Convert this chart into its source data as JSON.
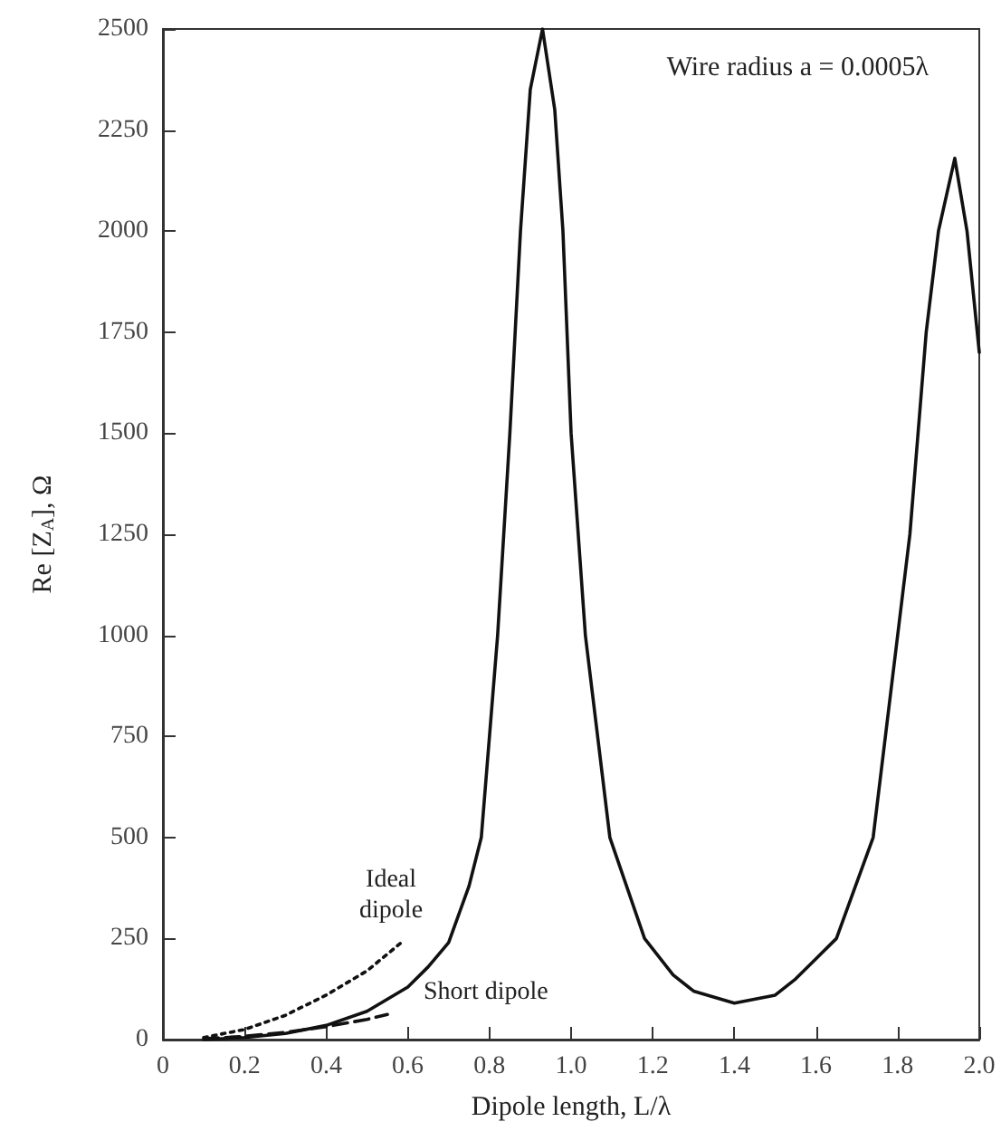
{
  "chart_data": {
    "type": "line",
    "xlabel": "Dipole length, L/λ",
    "ylabel": "Re [Z$_{A}$], Ω",
    "annotations": [
      "Wire radius a = 0.0005λ"
    ],
    "xlim": [
      0,
      2
    ],
    "xticks": [
      0,
      0.2,
      0.4,
      0.6,
      0.8,
      {
        "value": 1,
        "label": "1.0"
      },
      1.2,
      1.4,
      1.6,
      1.8,
      {
        "value": 2,
        "label": "2.0"
      }
    ],
    "ylim": [
      0,
      2500
    ],
    "yticks": [
      0,
      250,
      500,
      750,
      1000,
      1250,
      1500,
      1750,
      2000,
      2250,
      2500
    ],
    "grid": false,
    "legend": false,
    "marker": "none",
    "series": [
      {
        "color": "#111111",
        "line_style": "solid",
        "x": [
          0.1,
          0.2,
          0.3,
          0.4,
          0.5,
          0.6,
          0.65,
          0.7,
          0.75,
          0.78,
          0.82,
          0.85,
          0.876,
          0.9,
          0.93,
          0.96,
          0.98,
          1.0,
          1.035,
          1.095,
          1.18,
          1.25,
          1.3,
          1.4,
          1.5,
          1.55,
          1.6,
          1.65,
          1.74,
          1.8,
          1.83,
          1.87,
          1.9,
          1.94,
          1.97,
          2.0
        ],
        "values": [
          0,
          5,
          15,
          35,
          70,
          130,
          180,
          240,
          380,
          500,
          1000,
          1500,
          2000,
          2350,
          2500,
          2300,
          2000,
          1500,
          1000,
          500,
          250,
          160,
          120,
          90,
          110,
          150,
          200,
          250,
          500,
          1000,
          1250,
          1750,
          2000,
          2180,
          2000,
          1700
        ]
      },
      {
        "name": "Ideal dipole",
        "color": "#111111",
        "line_style": "dotted",
        "x": [
          0.1,
          0.2,
          0.3,
          0.4,
          0.5,
          0.59
        ],
        "values": [
          5,
          25,
          60,
          110,
          170,
          245
        ]
      },
      {
        "name": "Short dipole",
        "color": "#111111",
        "line_style": "dashed",
        "x": [
          0.1,
          0.2,
          0.3,
          0.4,
          0.5,
          0.55
        ],
        "values": [
          2,
          8,
          18,
          32,
          50,
          62
        ]
      }
    ]
  }
}
